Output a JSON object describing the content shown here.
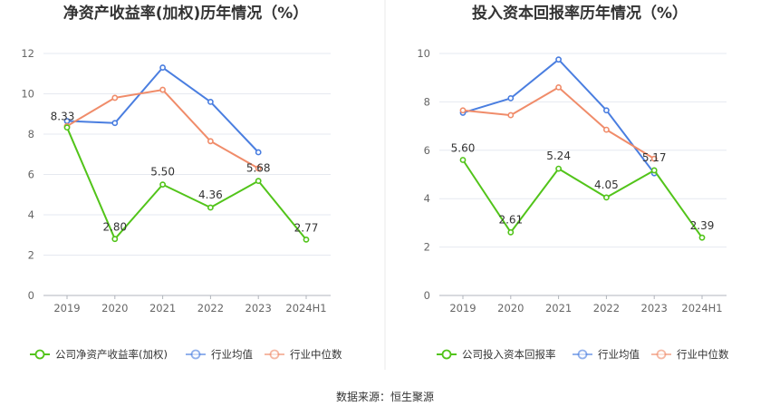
{
  "colors": {
    "company": "#52c41a",
    "avg": "#4a7ee0",
    "median": "#f08c6a",
    "grid": "#e6e9f0",
    "axis": "#b0b4bc",
    "divider": "#e8e8e8"
  },
  "source_text": "数据来源：恒生聚源",
  "chart_data": [
    {
      "type": "line",
      "title": "净资产收益率(加权)历年情况（%）",
      "categories": [
        "2019",
        "2020",
        "2021",
        "2022",
        "2023",
        "2024H1"
      ],
      "ylim": [
        0,
        12
      ],
      "yticks": [
        "0",
        "2",
        "4",
        "6",
        "8",
        "10",
        "12"
      ],
      "grid": true,
      "legend_position": "bottom",
      "series": [
        {
          "name": "公司净资产收益率(加权)",
          "key": "company",
          "values": [
            8.33,
            2.8,
            5.5,
            4.36,
            5.68,
            2.77
          ],
          "labels": [
            "8.33",
            "2.80",
            "5.50",
            "4.36",
            "5.68",
            "2.77"
          ]
        },
        {
          "name": "行业均值",
          "key": "avg",
          "values": [
            8.65,
            8.55,
            11.3,
            9.6,
            7.1,
            null
          ]
        },
        {
          "name": "行业中位数",
          "key": "median",
          "values": [
            8.4,
            9.8,
            10.2,
            7.65,
            6.3,
            null
          ]
        }
      ]
    },
    {
      "type": "line",
      "title": "投入资本回报率历年情况（%）",
      "categories": [
        "2019",
        "2020",
        "2021",
        "2022",
        "2023",
        "2024H1"
      ],
      "ylim": [
        0,
        10
      ],
      "yticks": [
        "0",
        "2",
        "4",
        "6",
        "8",
        "10"
      ],
      "grid": true,
      "legend_position": "bottom",
      "series": [
        {
          "name": "公司投入资本回报率",
          "key": "company",
          "values": [
            5.6,
            2.61,
            5.24,
            4.05,
            5.17,
            2.39
          ],
          "labels": [
            "5.60",
            "2.61",
            "5.24",
            "4.05",
            "5.17",
            "2.39"
          ]
        },
        {
          "name": "行业均值",
          "key": "avg",
          "values": [
            7.55,
            8.15,
            9.75,
            7.65,
            5.05,
            null
          ]
        },
        {
          "name": "行业中位数",
          "key": "median",
          "values": [
            7.65,
            7.45,
            8.6,
            6.85,
            5.65,
            null
          ]
        }
      ]
    }
  ]
}
